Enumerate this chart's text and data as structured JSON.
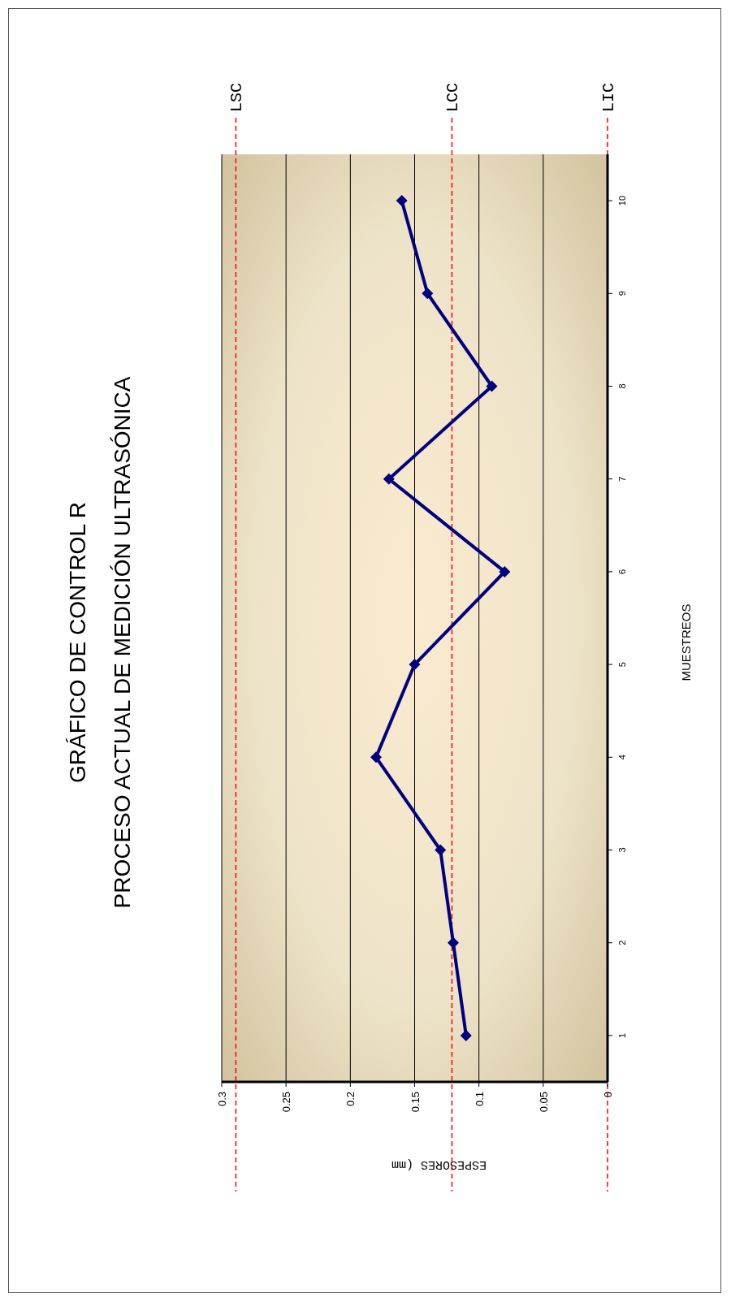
{
  "chart_data": {
    "type": "line",
    "orientation": "horizontal",
    "title": "GRÁFICO DE CONTROL  R",
    "subtitle": "PROCESO ACTUAL DE MEDICIÓN ULTRASÓNICA",
    "xlabel": "ESPESORES (mm",
    "ylabel": "MUESTREOS",
    "categories": [
      "10",
      "9",
      "8",
      "7",
      "6",
      "5",
      "4",
      "3",
      "2",
      "1"
    ],
    "series": [
      {
        "color": "#000080",
        "values": [
          0.16,
          0.14,
          0.09,
          0.17,
          0.08,
          0.15,
          0.18,
          0.13,
          0.12,
          0.11
        ]
      }
    ],
    "xlim": [
      0.3,
      0
    ],
    "xticks": [
      0,
      0.05,
      0.1,
      0.15,
      0.2,
      0.25,
      0.3
    ],
    "grid": "x",
    "marker": "diamond",
    "line_style": "solid",
    "ref_lines": [
      {
        "axis": "x",
        "value": 0.289,
        "label": "LSC",
        "color": "#ff0000",
        "line_style": "dashed"
      },
      {
        "axis": "x",
        "value": 0.121,
        "label": "LCC",
        "color": "#ff0000",
        "line_style": "dashed"
      },
      {
        "axis": "x",
        "value": 0,
        "label": "LIC",
        "color": "#ff0000",
        "line_style": "dashed"
      }
    ]
  }
}
